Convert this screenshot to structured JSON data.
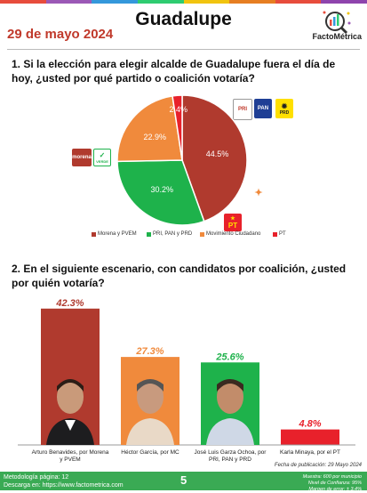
{
  "header": {
    "date": "29 de mayo 2024",
    "title": "Guadalupe",
    "brand": "FactoMétrica",
    "top_colors": [
      "#e74c3c",
      "#9b59b6",
      "#3498db",
      "#2ecc71",
      "#f1c40f",
      "#e67e22",
      "#e74c3c",
      "#8e44ad"
    ]
  },
  "question1": "1. Si la elección para elegir alcalde de Guadalupe fuera el día de hoy, ¿usted por qué partido o coalición votaría?",
  "question2": "2. En el siguiente escenario, con candidatos por coalición, ¿usted por quién votaría?",
  "logos": {
    "morena": "morena",
    "verde": "VERDE",
    "pri": "PRI",
    "pan": "PAN",
    "prd": "PRD",
    "mc": "MC",
    "pt": "PT"
  },
  "chart_data": [
    {
      "type": "pie",
      "title": "",
      "slices": [
        {
          "label": "Morena y PVEM",
          "value": 44.5,
          "value_label": "44.5%",
          "color": "#b03a2e"
        },
        {
          "label": "PRI, PAN y PRD",
          "value": 30.2,
          "value_label": "30.2%",
          "color": "#1eb24b"
        },
        {
          "label": "Movimiento Ciudadano",
          "value": 22.9,
          "value_label": "22.9%",
          "color": "#f08a3c"
        },
        {
          "label": "PT",
          "value": 2.4,
          "value_label": "2.4%",
          "color": "#e8212b"
        }
      ],
      "legend_position": "bottom"
    },
    {
      "type": "bar",
      "title": "",
      "categories": [
        "Arturo Benavides, por Morena y PVEM",
        "Héctor García, por MC",
        "José Luis Garza Ochoa, por PRI, PAN y PRD",
        "Karla Minaya, por el PT"
      ],
      "values": [
        42.3,
        27.3,
        25.6,
        4.8
      ],
      "value_labels": [
        "42.3%",
        "27.3%",
        "25.6%",
        "4.8%"
      ],
      "colors": [
        "#b03a2e",
        "#f08a3c",
        "#1eb24b",
        "#e8212b"
      ],
      "label_colors": [
        "#b03a2e",
        "#f08a3c",
        "#1eb24b",
        "#e8212b"
      ],
      "ylim": [
        0,
        45
      ]
    }
  ],
  "footer": {
    "methodology": "Metodología página: 12",
    "download": "Descarga en: https://www.factometrica.com",
    "page": "5",
    "pubdate": "Fecha de publicación: 29 Mayo 2024",
    "sample": "Muestra: 600 por municipio",
    "confidence": "Nivel de Confianza: 95%",
    "margin": "Margen de error: ± 3.4%"
  }
}
